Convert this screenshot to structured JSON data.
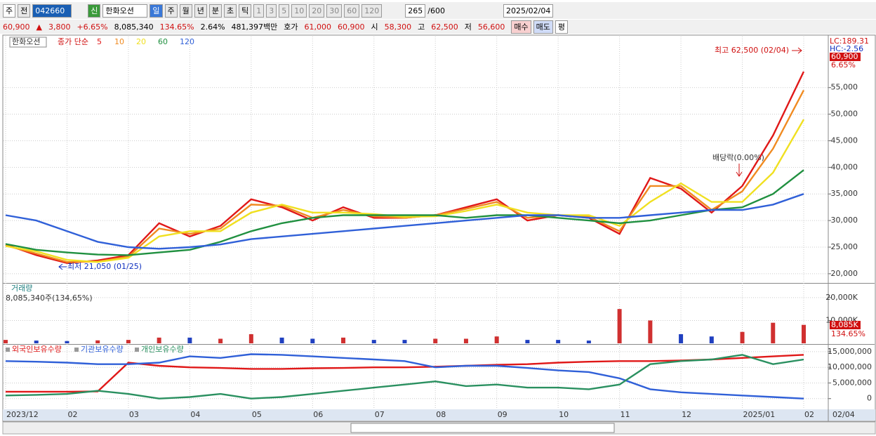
{
  "toolbar": {
    "period": "주",
    "prev": "전",
    "code": "042660",
    "badge": "신",
    "name": "한화오션",
    "units": [
      "일",
      "주",
      "월",
      "년",
      "분",
      "초",
      "틱"
    ],
    "steps": [
      "1",
      "3",
      "5",
      "10",
      "20",
      "30",
      "60",
      "120"
    ],
    "count": "265",
    "max": "/600",
    "date": "2025/02/04"
  },
  "quote": {
    "price": "60,900",
    "arrow": "▲",
    "change": "3,800",
    "rate": "+6.65%",
    "volume": "8,085,340",
    "vol_ratio": "134.65%",
    "turnover": "2.64%",
    "amount": "481,397백만",
    "bid_label": "호가",
    "ask": "61,000",
    "bid": "60,900",
    "open_label": "시",
    "open": "58,300",
    "high_label": "고",
    "high": "62,500",
    "low_label": "저",
    "low": "56,600",
    "buy": "매수",
    "sell": "매도",
    "avg": "평"
  },
  "chart_data": [
    {
      "type": "line",
      "symbol": "한화오션",
      "legend_prefix": "종가 단순",
      "categories": [
        "2023/12",
        null,
        "02",
        null,
        "03",
        null,
        "04",
        null,
        "05",
        null,
        "06",
        null,
        "07",
        null,
        "08",
        null,
        "09",
        null,
        "10",
        null,
        "11",
        null,
        "12",
        null,
        "2025/01",
        null,
        "02"
      ],
      "last_date": "02/04",
      "series": [
        {
          "name": "5",
          "color": "#e01818",
          "values": [
            25500,
            23500,
            22000,
            22500,
            23500,
            29500,
            27000,
            29000,
            34000,
            32500,
            30000,
            32500,
            30500,
            30500,
            31000,
            32500,
            34000,
            30000,
            31000,
            30500,
            27500,
            38000,
            36000,
            31500,
            36500,
            46000,
            58000
          ]
        },
        {
          "name": "10",
          "color": "#f08a20",
          "values": [
            25300,
            23800,
            22200,
            22300,
            23200,
            28500,
            27500,
            28500,
            33000,
            32800,
            30500,
            32000,
            30800,
            30500,
            31000,
            32200,
            33500,
            30500,
            31000,
            30700,
            28000,
            36500,
            36500,
            32000,
            35500,
            43500,
            54500
          ]
        },
        {
          "name": "20",
          "color": "#f0e020",
          "values": [
            25200,
            24200,
            22600,
            22200,
            23000,
            27000,
            28000,
            28000,
            31500,
            33000,
            31500,
            31500,
            31200,
            30700,
            30800,
            31800,
            33000,
            31500,
            31000,
            31000,
            29000,
            33500,
            37000,
            33500,
            33500,
            39000,
            49000
          ]
        },
        {
          "name": "60",
          "color": "#209040",
          "values": [
            25600,
            24500,
            24000,
            23600,
            23500,
            24000,
            24500,
            26000,
            28000,
            29500,
            30500,
            31000,
            31000,
            31000,
            31000,
            30500,
            31000,
            31000,
            30500,
            30000,
            29500,
            30000,
            31000,
            32000,
            32500,
            35000,
            39500
          ]
        },
        {
          "name": "120",
          "color": "#3060d8",
          "values": [
            31000,
            30000,
            28000,
            26000,
            25000,
            24700,
            25000,
            25500,
            26500,
            27000,
            27500,
            28000,
            28500,
            29000,
            29500,
            30000,
            30500,
            31000,
            31000,
            30500,
            30500,
            31000,
            31500,
            32000,
            32000,
            33000,
            35000
          ]
        }
      ],
      "ylim": [
        18400,
        64600
      ],
      "yticks": [
        {
          "value": 20000,
          "label": "20,000"
        },
        {
          "value": 25000,
          "label": "25,000"
        },
        {
          "value": 30000,
          "label": "30,000"
        },
        {
          "value": 35000,
          "label": "35,000"
        },
        {
          "value": 40000,
          "label": "40,000"
        },
        {
          "value": 45000,
          "label": "45,000"
        },
        {
          "value": 50000,
          "label": "50,000"
        },
        {
          "value": 55000,
          "label": "55,000"
        }
      ],
      "grid": true,
      "annotations": {
        "high": "최고 62,500 (02/04)",
        "low": "최저 21,050 (01/25)",
        "ex_dividend": "배당락(0.00%)"
      },
      "right_labels": {
        "lc": "LC:189.31",
        "hc": "HC:-2.56",
        "last": "60,900",
        "rate": "6.65%"
      }
    },
    {
      "type": "bar",
      "title": "거래량",
      "subtitle": "8,085,340주(134,65%)",
      "values": [
        1500,
        1200,
        1000,
        1300,
        1500,
        2500,
        2500,
        2000,
        4000,
        2500,
        2000,
        2500,
        1500,
        1500,
        2000,
        2000,
        3000,
        1500,
        1500,
        1200,
        15000,
        10000,
        4000,
        3000,
        5000,
        9000,
        8085
      ],
      "colors": [
        "#d03030",
        "#2040c0",
        "#2040c0",
        "#d03030",
        "#d03030",
        "#d03030",
        "#2040c0",
        "#d03030",
        "#d03030",
        "#2040c0",
        "#2040c0",
        "#d03030",
        "#2040c0",
        "#2040c0",
        "#d03030",
        "#d03030",
        "#d03030",
        "#2040c0",
        "#2040c0",
        "#2040c0",
        "#d03030",
        "#d03030",
        "#2040c0",
        "#2040c0",
        "#d03030",
        "#d03030",
        "#d03030"
      ],
      "ylim": [
        0,
        25800
      ],
      "yticks": [
        {
          "value": 10000,
          "label": "10,000K"
        },
        {
          "value": 20000,
          "label": "20,000K"
        }
      ],
      "grid": true,
      "right_labels": {
        "last": "8,085K",
        "rate": "134.65%"
      }
    },
    {
      "type": "line",
      "series": [
        {
          "name": "외국인보유수량",
          "color": "#e01818",
          "values": [
            2200000,
            2200000,
            2200000,
            2300000,
            11500000,
            10500000,
            10000000,
            9800000,
            9500000,
            9500000,
            9700000,
            9800000,
            10000000,
            10000000,
            10200000,
            10500000,
            10800000,
            11000000,
            11500000,
            11800000,
            12000000,
            12000000,
            12200000,
            12500000,
            13000000,
            13500000,
            14000000
          ]
        },
        {
          "name": "기관보유수량",
          "color": "#3060d8",
          "values": [
            12000000,
            11800000,
            11500000,
            11000000,
            11000000,
            11500000,
            13500000,
            13000000,
            14200000,
            14000000,
            13500000,
            13000000,
            12500000,
            12000000,
            10000000,
            10500000,
            10500000,
            9800000,
            9000000,
            8500000,
            6500000,
            3000000,
            2000000,
            1500000,
            1000000,
            500000,
            0
          ]
        },
        {
          "name": "개인보유수량",
          "color": "#2a9060",
          "values": [
            1000000,
            1200000,
            1500000,
            2500000,
            1500000,
            0,
            500000,
            1500000,
            0,
            500000,
            1500000,
            2500000,
            3500000,
            4500000,
            5500000,
            4000000,
            4500000,
            3500000,
            3500000,
            3000000,
            4500000,
            11000000,
            12000000,
            12500000,
            14000000,
            11000000,
            12500000
          ]
        }
      ],
      "ylim": [
        -3200000,
        17000000
      ],
      "yticks": [
        0,
        {
          "value": 5000000,
          "label": "5,000,000"
        },
        {
          "value": 10000000,
          "label": "10,000,000"
        },
        {
          "value": 15000000,
          "label": "15,000,000"
        }
      ],
      "grid": true
    }
  ]
}
